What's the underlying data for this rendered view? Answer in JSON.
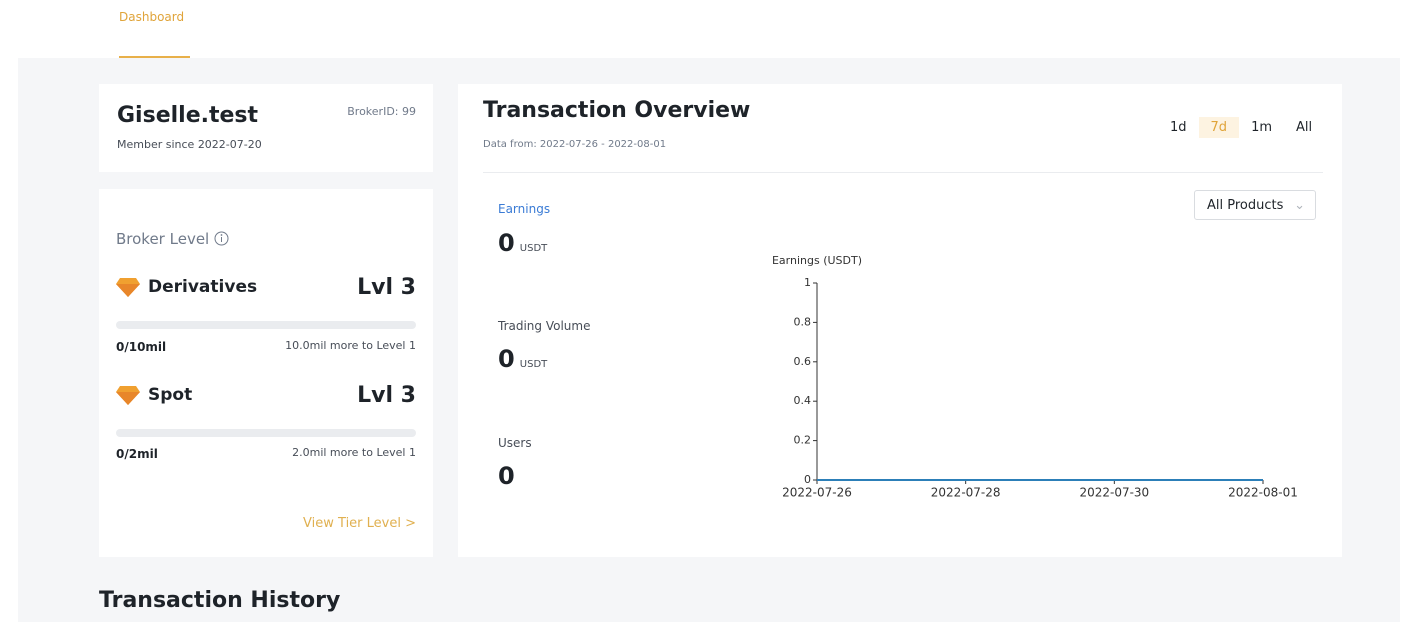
{
  "nav": {
    "tab": "Dashboard"
  },
  "profile": {
    "name": "Giselle.test",
    "broker_id": "BrokerID: 99",
    "member_since": "Member since 2022-07-20"
  },
  "broker_level": {
    "title": "Broker Level",
    "levels": [
      {
        "name": "Derivatives",
        "level": "Lvl 3",
        "progress": "0/10mil",
        "remaining": "10.0mil more to Level 1"
      },
      {
        "name": "Spot",
        "level": "Lvl 3",
        "progress": "0/2mil",
        "remaining": "2.0mil more to Level 1"
      }
    ],
    "link": "View Tier Level >"
  },
  "overview": {
    "title": "Transaction Overview",
    "range": "Data from: 2022-07-26 - 2022-08-01",
    "periods": [
      "1d",
      "7d",
      "1m",
      "All"
    ],
    "dropdown": "All Products",
    "stats": [
      {
        "label": "Earnings",
        "value": "0",
        "unit": "USDT"
      },
      {
        "label": "Trading Volume",
        "value": "0",
        "unit": "USDT"
      },
      {
        "label": "Users",
        "value": "0"
      }
    ]
  },
  "chart_data": {
    "type": "line",
    "y_label": "Earnings (USDT)",
    "x": [
      "2022-07-26",
      "2022-07-27",
      "2022-07-28",
      "2022-07-29",
      "2022-07-30",
      "2022-07-31",
      "2022-08-01"
    ],
    "series": [
      {
        "color": "#2c7fb8",
        "values": [
          0,
          0,
          0,
          0,
          0,
          0,
          0
        ]
      }
    ],
    "xlim": [
      "2022-07-26",
      "2022-08-01"
    ],
    "xticks": [
      "2022-07-26",
      "2022-07-28",
      "2022-07-30",
      "2022-08-01"
    ],
    "ylim": [
      0,
      1
    ],
    "yticks": [
      0,
      0.2,
      0.4,
      0.6,
      0.8,
      1
    ]
  },
  "history": {
    "title": "Transaction History"
  }
}
